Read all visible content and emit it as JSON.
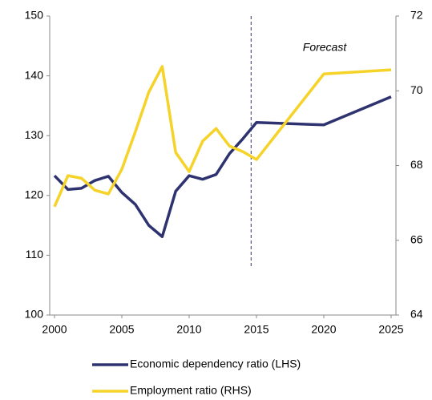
{
  "chart_data": {
    "type": "line",
    "annotation": "Forecast",
    "forecast_x": 2014.6,
    "x": [
      2000,
      2001,
      2002,
      2003,
      2004,
      2005,
      2006,
      2007,
      2008,
      2009,
      2010,
      2011,
      2012,
      2013,
      2014,
      2015,
      2020,
      2025
    ],
    "xlim": [
      2000,
      2025
    ],
    "xticks": [
      2000,
      2005,
      2010,
      2015,
      2020,
      2025
    ],
    "ylim": [
      100,
      150
    ],
    "yticks": [
      100,
      110,
      120,
      130,
      140,
      150
    ],
    "y2lim": [
      64,
      72
    ],
    "y2ticks": [
      64,
      66,
      68,
      70,
      72
    ],
    "series": [
      {
        "name": "Economic dependency ratio (LHS)",
        "color": "#2e3370",
        "values": [
          123.3,
          121,
          121.2,
          122.5,
          123.2,
          120.5,
          118.5,
          115,
          113.1,
          120.7,
          123.3,
          122.7,
          123.5,
          127,
          129.5,
          132.2,
          131.8,
          136.5
        ]
      },
      {
        "name": "Employment ratio (RHS)",
        "color": "#f5d328",
        "axis": "y2",
        "values": [
          66.9,
          67.73,
          67.66,
          67.34,
          67.24,
          67.9,
          68.9,
          69.96,
          70.65,
          68.35,
          67.84,
          68.65,
          68.99,
          68.52,
          68.37,
          68.16,
          70.45,
          70.56
        ]
      }
    ]
  }
}
